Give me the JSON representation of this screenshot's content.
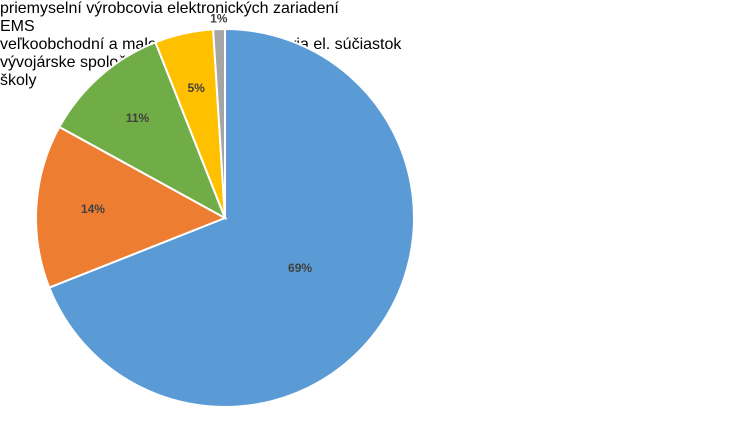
{
  "chart_data": {
    "type": "pie",
    "categories": [
      "priemyselní výrobcovia elektronických zariadení",
      "EMS",
      "veľkoobchodní a maloobchodní predajcovia el. súčiastok",
      "vývojárske spoločnosti",
      "školy"
    ],
    "values": [
      69,
      14,
      11,
      5,
      1
    ],
    "value_labels": [
      "69%",
      "14%",
      "11%",
      "5%",
      "1%"
    ],
    "colors": [
      "#5b9bd5",
      "#ed7d31",
      "#70ad47",
      "#ffc000",
      "#a5a5a5"
    ],
    "legend": "right"
  }
}
